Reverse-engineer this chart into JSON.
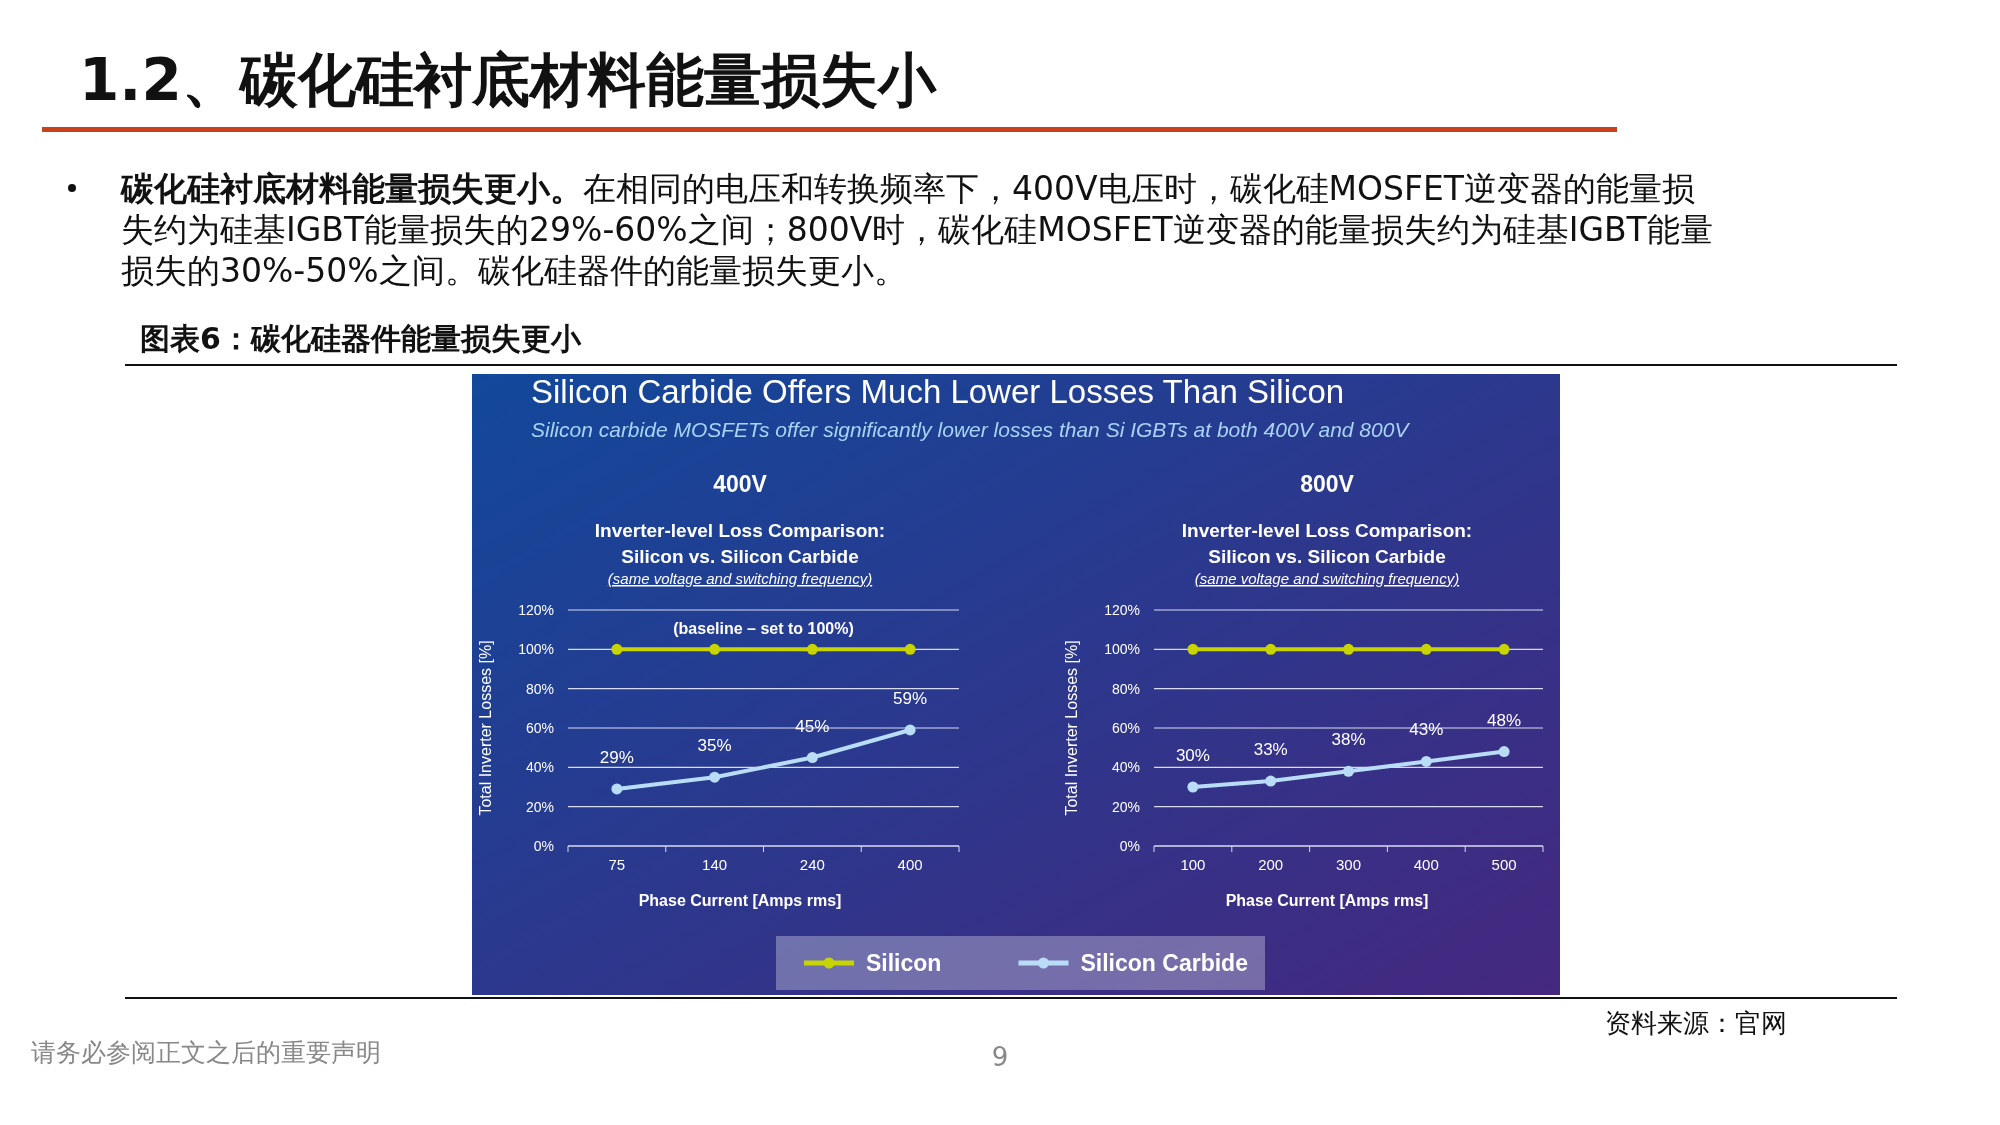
{
  "chart_data": [
    {
      "type": "line",
      "title": "400V",
      "subtitle": "Inverter-level Loss Comparison:\nSilicon vs. Silicon Carbide",
      "xlabel": "Phase Current [Amps rms]",
      "ylabel": "Total Inverter Losses [%]",
      "categories": [
        "75",
        "140",
        "240",
        "400"
      ],
      "series": [
        {
          "name": "Silicon",
          "color": "#c8d400",
          "values": [
            100,
            100,
            100,
            100
          ]
        },
        {
          "name": "Silicon Carbide",
          "color": "#b9ddf6",
          "values": [
            29,
            35,
            45,
            59
          ],
          "value_labels": [
            "29%",
            "35%",
            "45%",
            "59%"
          ]
        }
      ],
      "ylim": [
        0,
        120
      ],
      "yticks": [
        {
          "value": 0,
          "label": "0%"
        },
        {
          "value": 20,
          "label": "20%"
        },
        {
          "value": 40,
          "label": "40%"
        },
        {
          "value": 60,
          "label": "60%"
        },
        {
          "value": 80,
          "label": "80%"
        },
        {
          "value": 100,
          "label": "100%"
        },
        {
          "value": 120,
          "label": "120%"
        }
      ],
      "grid": "y",
      "marker": "circle",
      "legend": "bottom",
      "annotations": [
        "(same voltage and switching frequency)",
        "(baseline – set to 100%)",
        "1.2、碳化硅衬底材料能量损失小",
        "碳化硅衬底材料能量损失更小。",
        "在相同的电压和转换频率下，400V电压时，碳化硅MOSFET逆变器的能量损",
        "失约为硅基IGBT能量损失的29%-60%之间；800V时，碳化硅MOSFET逆变器的能量损失约为硅基IGBT能量",
        "损失的30%-50%之间。碳化硅器件的能量损失更小。",
        "图表6：碳化硅器件能量损失更小",
        "Silicon Carbide Offers Much Lower Losses Than Silicon",
        "Silicon carbide MOSFETs offer significantly lower losses than Si IGBTs at both 400V and 800V",
        "资料来源：官网",
        "请务必参阅正文之后的重要声明",
        "9"
      ]
    },
    {
      "type": "line",
      "title": "800V",
      "subtitle": "Inverter-level Loss Comparison:\nSilicon vs. Silicon Carbide",
      "xlabel": "Phase Current [Amps rms]",
      "ylabel": "Total Inverter Losses [%]",
      "categories": [
        "100",
        "200",
        "300",
        "400",
        "500"
      ],
      "series": [
        {
          "color": "#c8d400",
          "values": [
            100,
            100,
            100,
            100,
            100
          ]
        },
        {
          "color": "#b9ddf6",
          "values": [
            30,
            33,
            38,
            43,
            48
          ],
          "value_labels": [
            "30%",
            "33%",
            "38%",
            "43%",
            "48%"
          ]
        }
      ],
      "ylim": [
        0,
        120
      ],
      "yticks": [
        {
          "value": 0,
          "label": "0%"
        },
        {
          "value": 20,
          "label": "20%"
        },
        {
          "value": 40,
          "label": "40%"
        },
        {
          "value": 60,
          "label": "60%"
        },
        {
          "value": 80,
          "label": "80%"
        },
        {
          "value": 100,
          "label": "100%"
        },
        {
          "value": 120,
          "label": "120%"
        }
      ],
      "grid": "y",
      "marker": "circle",
      "annotations": [
        "(same voltage and switching frequency)"
      ]
    }
  ]
}
